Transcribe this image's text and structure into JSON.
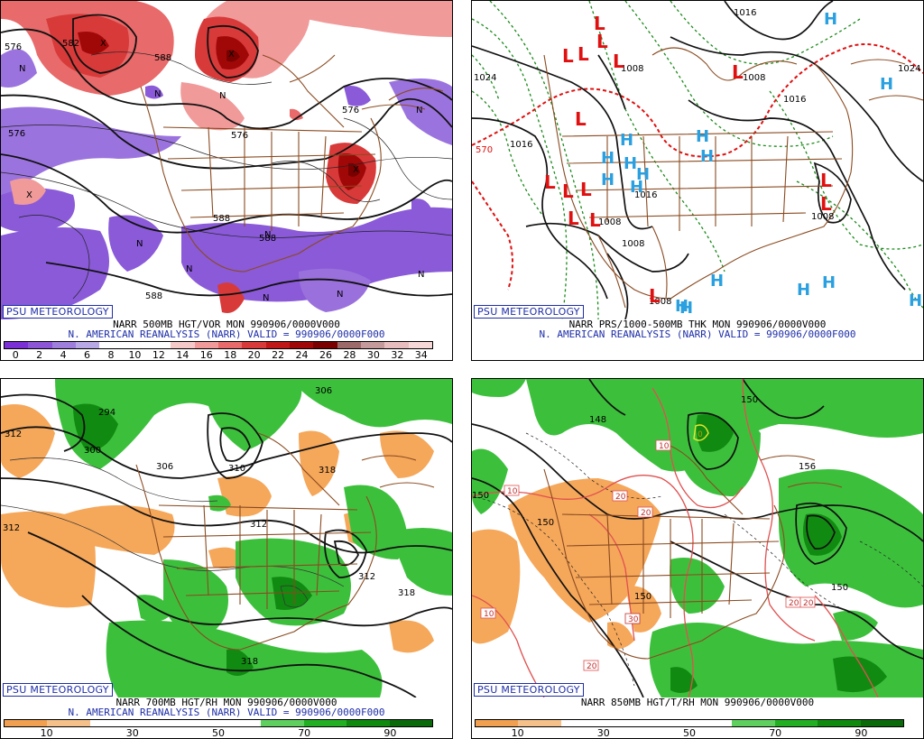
{
  "panels": [
    {
      "id": "tl",
      "title_line1": "NARR 500MB HGT/VOR MON 990906/0000V000",
      "title_line2": "N. AMERICAN REANALYSIS (NARR) VALID = 990906/0000F000",
      "credit": "PSU METEOROLOGY",
      "colorbar_labels": [
        "0",
        "2",
        "4",
        "6",
        "8",
        "10",
        "12",
        "14",
        "16",
        "18",
        "20",
        "22",
        "24",
        "26",
        "28",
        "30",
        "32",
        "34"
      ],
      "colorbar_colors": [
        "#7b2fd6",
        "#8c55d8",
        "#9f7fdc",
        "#b9a8e6",
        "#ffffff",
        "#ffffff",
        "#ffffff",
        "#f6c9c9",
        "#f09a9a",
        "#e86a6a",
        "#d83a3a",
        "#c01818",
        "#a00808",
        "#7a0000",
        "#9d6a6a",
        "#c49a9a",
        "#e8bdbd",
        "#f7d8d8"
      ],
      "contour_labels": [
        "576",
        "582",
        "588",
        "576",
        "588",
        "576",
        "588",
        "588",
        "576"
      ],
      "vort_labels": [
        "N",
        "X",
        "X",
        "N",
        "X",
        "X",
        "N",
        "N",
        "N",
        "N",
        "N",
        "N",
        "N",
        "N"
      ]
    },
    {
      "id": "tr",
      "title_line1": "NARR PRS/1000-500MB THK MON 990906/0000V000",
      "title_line2": "N. AMERICAN REANALYSIS (NARR) VALID = 990906/0000F000",
      "credit": "PSU METEOROLOGY",
      "isobar_labels": [
        "1024",
        "1024",
        "1016",
        "1016",
        "1016",
        "1008",
        "1008",
        "1008",
        "1008",
        "1008",
        "1016",
        "1008",
        "570"
      ],
      "lows": [
        "L",
        "L",
        "L",
        "L",
        "L",
        "L",
        "L",
        "L",
        "L",
        "L",
        "L",
        "L",
        "L",
        "L",
        "L"
      ],
      "highs": [
        "H",
        "H",
        "H",
        "H",
        "H",
        "H",
        "H",
        "H",
        "H",
        "H",
        "H",
        "H",
        "H",
        "H",
        "H",
        "H"
      ]
    },
    {
      "id": "bl",
      "title_line1": "NARR 700MB HGT/RH MON 990906/0000V000",
      "title_line2": "N. AMERICAN REANALYSIS (NARR) VALID = 990906/0000F000",
      "credit": "PSU METEOROLOGY",
      "colorbar_labels": [
        "10",
        "30",
        "50",
        "70",
        "90"
      ],
      "colorbar_colors": [
        "#f0a050",
        "#f5c08a",
        "#ffffff",
        "#ffffff",
        "#ffffff",
        "#ffffff",
        "#5fd05f",
        "#22b022",
        "#0f8a0f",
        "#0a6a0a"
      ],
      "contour_labels": [
        "306",
        "312",
        "294",
        "300",
        "306",
        "310",
        "318",
        "312",
        "312",
        "318",
        "312",
        "318"
      ]
    },
    {
      "id": "br",
      "title_line1": "NARR 850MB HGT/T/RH MON 990906/0000V000",
      "title_line2": "",
      "credit": "PSU METEOROLOGY",
      "colorbar_labels": [
        "10",
        "30",
        "50",
        "70",
        "90"
      ],
      "colorbar_colors": [
        "#f0a050",
        "#f5c08a",
        "#ffffff",
        "#ffffff",
        "#ffffff",
        "#ffffff",
        "#5fd05f",
        "#22b022",
        "#0f8a0f",
        "#0a6a0a"
      ],
      "contour_labels": [
        "150",
        "148",
        "156",
        "150",
        "150",
        "150",
        "150"
      ],
      "temp_labels": [
        "10",
        "10",
        "20",
        "20",
        "20",
        "30",
        "10",
        "20",
        "20",
        "10",
        "0"
      ]
    }
  ]
}
